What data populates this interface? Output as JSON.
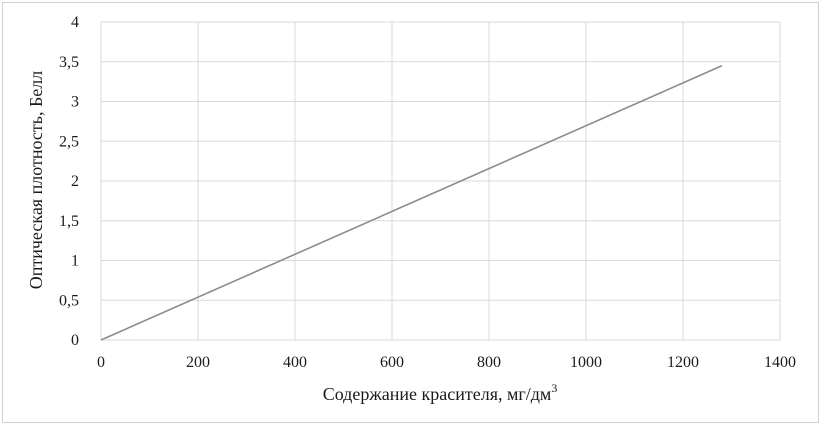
{
  "chart_data": {
    "type": "line",
    "title": "",
    "xlabel": "Содержание красителя, мг/дм",
    "xlabel_superscript": "3",
    "ylabel": "Оптическая плотность, Белл",
    "xlim": [
      0,
      1400
    ],
    "ylim": [
      0,
      4
    ],
    "x_ticks": [
      "0",
      "200",
      "400",
      "600",
      "800",
      "1000",
      "1200",
      "1400"
    ],
    "y_ticks": [
      "0",
      "0,5",
      "1",
      "1,5",
      "2",
      "2,5",
      "3",
      "3,5",
      "4"
    ],
    "grid": true,
    "series": [
      {
        "x": [
          0,
          1280
        ],
        "y": [
          0,
          3.45
        ],
        "color": "#8c8c8c"
      }
    ]
  }
}
